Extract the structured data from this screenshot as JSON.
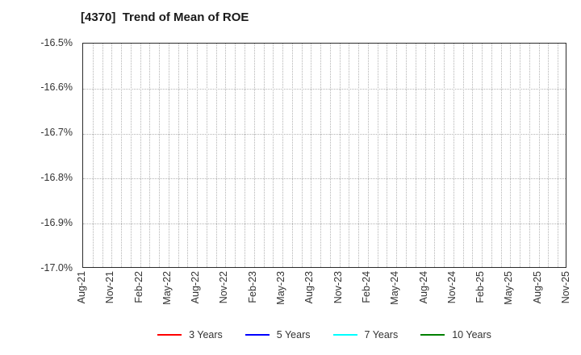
{
  "chart_data": {
    "type": "line",
    "title": "[4370]  Trend of Mean of ROE",
    "x_tick_labels": [
      "Aug-21",
      "Nov-21",
      "Feb-22",
      "May-22",
      "Aug-22",
      "Nov-22",
      "Feb-23",
      "May-23",
      "Aug-23",
      "Nov-23",
      "Feb-24",
      "May-24",
      "Aug-24",
      "Nov-24",
      "Feb-25",
      "May-25",
      "Aug-25",
      "Nov-25"
    ],
    "x_tick_interval_months": 3,
    "x_minor_gridline_interval_months": 1,
    "y_ticks": [
      -16.5,
      -16.6,
      -16.7,
      -16.8,
      -16.9,
      -17.0
    ],
    "y_tick_labels": [
      "-16.5%",
      "-16.6%",
      "-16.7%",
      "-16.8%",
      "-16.9%",
      "-17.0%"
    ],
    "ylim": [
      -17.0,
      -16.5
    ],
    "grid": true,
    "legend_position": "bottom",
    "series": [
      {
        "name": "3 Years",
        "color": "#ff0000",
        "values": []
      },
      {
        "name": "5 Years",
        "color": "#0000ff",
        "values": []
      },
      {
        "name": "7 Years",
        "color": "#00ffff",
        "values": []
      },
      {
        "name": "10 Years",
        "color": "#008000",
        "values": []
      }
    ]
  },
  "colors": {
    "grid": "#b4b4b4",
    "axis_border": "#2b2b2b",
    "text": "#333333",
    "background": "#ffffff"
  }
}
